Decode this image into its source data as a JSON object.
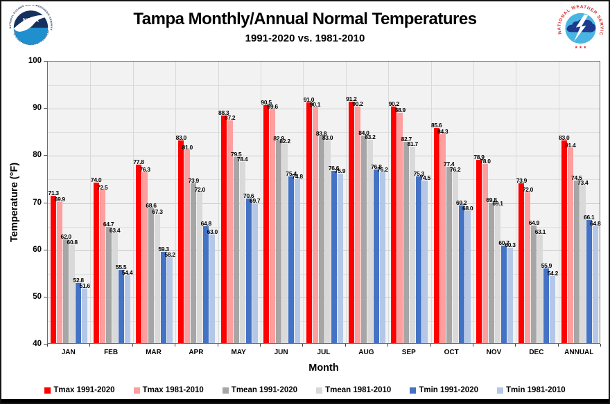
{
  "header": {
    "title": "Tampa Monthly/Annual Normal Temperatures",
    "subtitle": "1991-2020 vs. 1981-2010"
  },
  "logos": {
    "noaa": {
      "ring_top": "NATIONAL OCEANIC AND ATMOSPHERIC ADMINISTRATION",
      "ring_bottom": "U.S. DEPARTMENT OF COMMERCE",
      "label": "NOAA",
      "dark_blue": "#16315e",
      "light_blue": "#1f8fce"
    },
    "nws": {
      "ring": "NATIONAL WEATHER SERVICE",
      "stars": "★ ★ ★",
      "red": "#d62b2b",
      "inner_blue": "#4ab5e2",
      "cloud_blue": "#1d3a8f"
    }
  },
  "chart_data": {
    "type": "bar",
    "title": "Tampa Monthly/Annual Normal Temperatures",
    "subtitle": "1991-2020 vs. 1981-2010",
    "xlabel": "Month",
    "ylabel": "Temperature (°F)",
    "ylim": [
      40,
      100
    ],
    "yticks": [
      40,
      50,
      60,
      70,
      80,
      90,
      100
    ],
    "minor_grid_step": 5,
    "grid": true,
    "legend_position": "bottom",
    "plot_bg": "#f2f2f2",
    "categories": [
      "JAN",
      "FEB",
      "MAR",
      "APR",
      "MAY",
      "JUN",
      "JUL",
      "AUG",
      "SEP",
      "OCT",
      "NOV",
      "DEC",
      "ANNUAL"
    ],
    "series": [
      {
        "name": "Tmax 1991-2020",
        "color": "#ff0000",
        "values": [
          71.3,
          74.0,
          77.8,
          83.0,
          88.3,
          90.5,
          91.0,
          91.2,
          90.2,
          85.6,
          78.9,
          73.9,
          83.0
        ]
      },
      {
        "name": "Tmax 1981-2010",
        "color": "#ff9e9e",
        "values": [
          69.9,
          72.5,
          76.3,
          81.0,
          87.2,
          89.6,
          90.1,
          90.2,
          88.9,
          84.3,
          78.0,
          72.0,
          81.4
        ]
      },
      {
        "name": "Tmean 1991-2020",
        "color": "#a6a6a6",
        "values": [
          62.0,
          64.7,
          68.6,
          73.9,
          79.5,
          82.9,
          83.8,
          84.0,
          82.7,
          77.4,
          69.8,
          64.9,
          74.5
        ]
      },
      {
        "name": "Tmean 1981-2010",
        "color": "#d9d9d9",
        "values": [
          60.8,
          63.4,
          67.3,
          72.0,
          78.4,
          82.2,
          83.0,
          83.2,
          81.7,
          76.2,
          69.1,
          63.1,
          73.4
        ]
      },
      {
        "name": "Tmin 1991-2020",
        "color": "#4472c4",
        "values": [
          52.8,
          55.5,
          59.3,
          64.8,
          70.6,
          75.4,
          76.6,
          76.8,
          75.3,
          69.2,
          60.7,
          55.9,
          66.1
        ]
      },
      {
        "name": "Tmin 1981-2010",
        "color": "#b4c7e7",
        "values": [
          51.6,
          54.4,
          58.2,
          63.0,
          69.7,
          74.8,
          75.9,
          76.2,
          74.5,
          68.0,
          60.3,
          54.2,
          64.8
        ]
      }
    ]
  }
}
